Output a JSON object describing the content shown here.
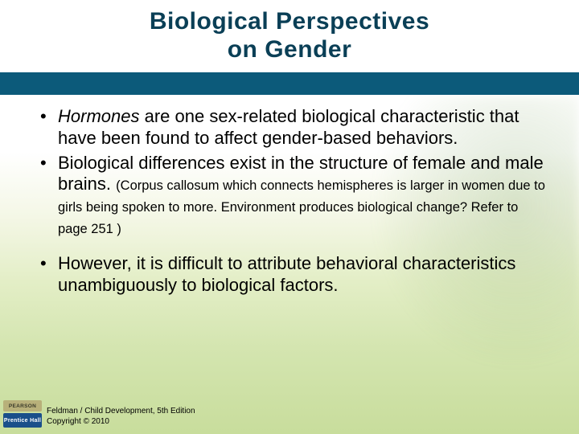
{
  "colors": {
    "brand_blue": "#0c5a7a",
    "title_text": "#0a3f56",
    "bg_top": "#ffffff",
    "bg_bottom": "#c8dd9c",
    "pearson_badge": "#b8b07a",
    "ph_badge": "#1a4f8a"
  },
  "typography": {
    "title_fontsize": 30,
    "title_fontweight": 900,
    "body_fontsize": 22,
    "note_fontsize": 16.5,
    "footer_fontsize": 10
  },
  "title": {
    "line1_strong": "Biological",
    "line1_light": " Perspectives",
    "line2": "on Gender"
  },
  "bullets": {
    "b1_italic": "Hormones",
    "b1_rest": " are one sex-related biological characteristic that have been found to affect gender-based behaviors.",
    "b2_main": "Biological differences exist in the structure of female and male brains. ",
    "b2_note": "(Corpus callosum which connects hemispheres is larger in women due to girls being spoken to more.  Environment produces biological change? Refer to page 251 )",
    "b3": "However, it is difficult to attribute behavioral characteristics unambiguously to biological factors."
  },
  "footer": {
    "pearson_label": "PEARSON",
    "ph_label": "Prentice Hall",
    "line1": "Feldman / Child Development, 5th Edition",
    "line2": "Copyright © 2010"
  }
}
